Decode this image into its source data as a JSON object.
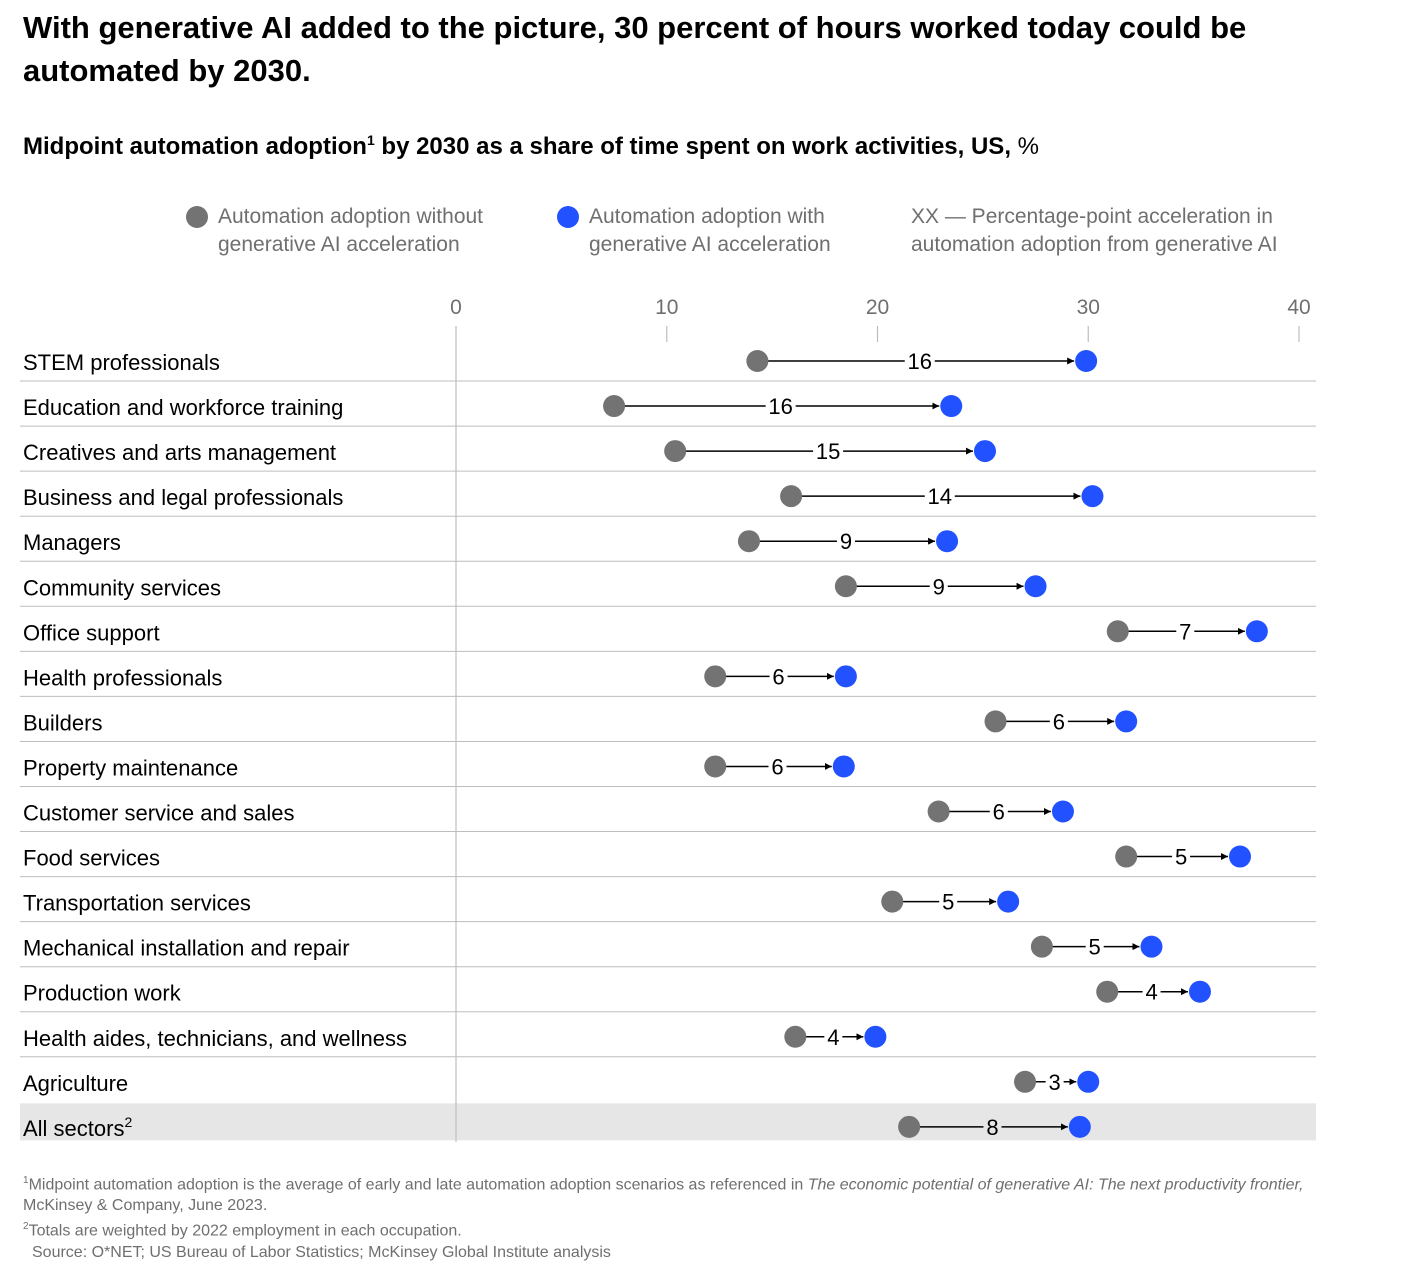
{
  "title": "With generative AI added to the picture, 30 percent of hours worked today could be automated by 2030.",
  "subtitle": {
    "main": "Midpoint automation adoption",
    "sup": "1",
    "rest": " by 2030 as a share of time spent on work activities, US,",
    "unit": " %"
  },
  "legend": {
    "without": "Automation adoption without generative AI acceleration",
    "with": "Automation adoption with generative AI acceleration",
    "xx": "XX — Percentage-point acceleration in automation adoption from generative AI"
  },
  "colors": {
    "without": "#737373",
    "with": "#2251ff",
    "highlight_row": "#e6e6e6",
    "grid": "#bdbdbd"
  },
  "chart_data": {
    "type": "dumbbell",
    "xlim": [
      0,
      40
    ],
    "xticks": [
      0,
      10,
      20,
      30,
      40
    ],
    "xtick_labels": [
      "0",
      "10",
      "20",
      "30",
      "40"
    ],
    "series": [
      {
        "name": "Automation adoption without generative AI acceleration"
      },
      {
        "name": "Automation adoption with generative AI acceleration"
      }
    ],
    "rows": [
      {
        "label": "STEM professionals",
        "without": 14.3,
        "with": 29.9,
        "delta": "16"
      },
      {
        "label": "Education and workforce training",
        "without": 7.5,
        "with": 23.5,
        "delta": "16"
      },
      {
        "label": "Creatives and arts management",
        "without": 10.4,
        "with": 25.1,
        "delta": "15"
      },
      {
        "label": "Business and legal professionals",
        "without": 15.9,
        "with": 30.2,
        "delta": "14"
      },
      {
        "label": "Managers",
        "without": 13.9,
        "with": 23.3,
        "delta": "9"
      },
      {
        "label": "Community services",
        "without": 18.5,
        "with": 27.5,
        "delta": "9"
      },
      {
        "label": "Office support",
        "without": 31.4,
        "with": 38.0,
        "delta": "7"
      },
      {
        "label": "Health professionals",
        "without": 12.3,
        "with": 18.5,
        "delta": "6"
      },
      {
        "label": "Builders",
        "without": 25.6,
        "with": 31.8,
        "delta": "6"
      },
      {
        "label": "Property maintenance",
        "without": 12.3,
        "with": 18.4,
        "delta": "6"
      },
      {
        "label": "Customer service and sales",
        "without": 22.9,
        "with": 28.8,
        "delta": "6"
      },
      {
        "label": "Food services",
        "without": 31.8,
        "with": 37.2,
        "delta": "5"
      },
      {
        "label": "Transportation services",
        "without": 20.7,
        "with": 26.2,
        "delta": "5"
      },
      {
        "label": "Mechanical installation and repair",
        "without": 27.8,
        "with": 33.0,
        "delta": "5"
      },
      {
        "label": "Production work",
        "without": 30.9,
        "with": 35.3,
        "delta": "4"
      },
      {
        "label": "Health aides, technicians, and wellness",
        "without": 16.1,
        "with": 19.9,
        "delta": "4"
      },
      {
        "label": "Agriculture",
        "without": 27.0,
        "with": 30.0,
        "delta": "3"
      },
      {
        "label": "All sectors",
        "label_sup": "2",
        "without": 21.5,
        "with": 29.6,
        "delta": "8",
        "highlight": true
      }
    ]
  },
  "footnotes": {
    "n1_sup": "1",
    "n1_a": "Midpoint automation adoption is the average of early and late automation adoption scenarios as referenced in ",
    "n1_italic": "The economic potential of generative AI: The next productivity frontier,",
    "n1_b": " McKinsey & Company, June 2023.",
    "n2_sup": "2",
    "n2": "Totals are weighted by 2022 employment in each occupation.",
    "source": "Source: O*NET; US Bureau of Labor Statistics; McKinsey Global Institute analysis"
  }
}
